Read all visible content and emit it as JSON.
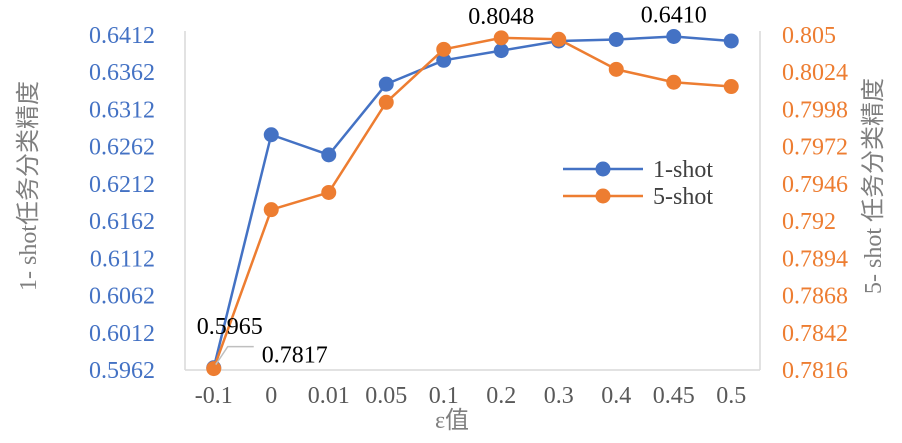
{
  "chart_data": {
    "type": "line",
    "categories": [
      "-0.1",
      "0",
      "0.01",
      "0.05",
      "0.1",
      "0.2",
      "0.3",
      "0.4",
      "0.45",
      "0.5"
    ],
    "x_title": "ε值",
    "y_left_title": "1- shot任务分类精度",
    "y_right_title": "5- shot 任务分类精度",
    "y_left": {
      "ticks": [
        "0.5962",
        "0.6012",
        "0.6062",
        "0.6112",
        "0.6162",
        "0.6212",
        "0.6262",
        "0.6312",
        "0.6362",
        "0.6412"
      ],
      "range": [
        0.5962,
        0.6412
      ],
      "color": "#4472c4"
    },
    "y_right": {
      "ticks": [
        "0.7816",
        "0.7842",
        "0.7868",
        "0.7894",
        "0.792",
        "0.7946",
        "0.7972",
        "0.7998",
        "0.8024",
        "0.805"
      ],
      "range": [
        0.7816,
        0.805
      ],
      "color": "#ed7d31"
    },
    "series": [
      {
        "name": "1-shot",
        "axis": "left",
        "color": "#4472c4",
        "values": [
          0.5965,
          0.6278,
          0.6251,
          0.6346,
          0.6378,
          0.6391,
          0.6404,
          0.6406,
          0.641,
          0.6404
        ]
      },
      {
        "name": "5-shot",
        "axis": "right",
        "color": "#ed7d31",
        "values": [
          0.7817,
          0.7928,
          0.794,
          0.8003,
          0.804,
          0.8048,
          0.8047,
          0.8026,
          0.8017,
          0.8014
        ]
      }
    ],
    "data_labels": [
      {
        "series": 0,
        "index": 0,
        "text": "0.5965"
      },
      {
        "series": 1,
        "index": 0,
        "text": "0.7817"
      },
      {
        "series": 1,
        "index": 5,
        "text": "0.8048"
      },
      {
        "series": 0,
        "index": 8,
        "text": "0.6410"
      }
    ],
    "legend_position": "right",
    "grid": false
  }
}
